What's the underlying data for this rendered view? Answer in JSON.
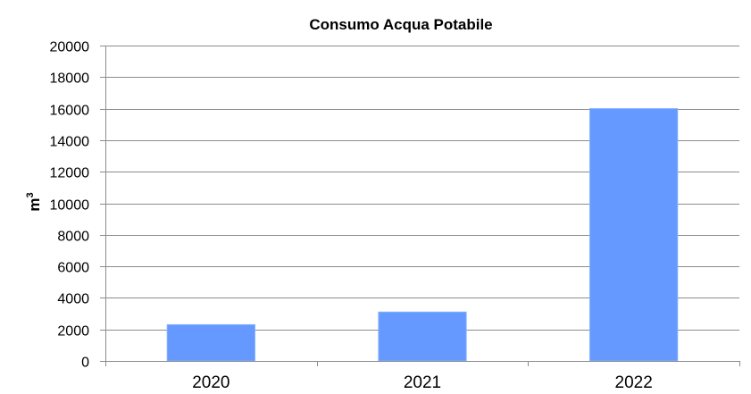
{
  "chart_data": {
    "type": "bar",
    "title": "Consumo Acqua Potabile",
    "ylabel": "m",
    "ylabel_superscript": "3",
    "xlabel": "",
    "categories": [
      "2020",
      "2021",
      "2022"
    ],
    "values": [
      2300,
      3100,
      16000
    ],
    "ylim": [
      0,
      20000
    ],
    "yticks": [
      "0",
      "2000",
      "4000",
      "6000",
      "8000",
      "10000",
      "12000",
      "14000",
      "16000",
      "18000",
      "20000"
    ],
    "grid": true,
    "legend": "none",
    "bar_color": "#6699ff"
  }
}
